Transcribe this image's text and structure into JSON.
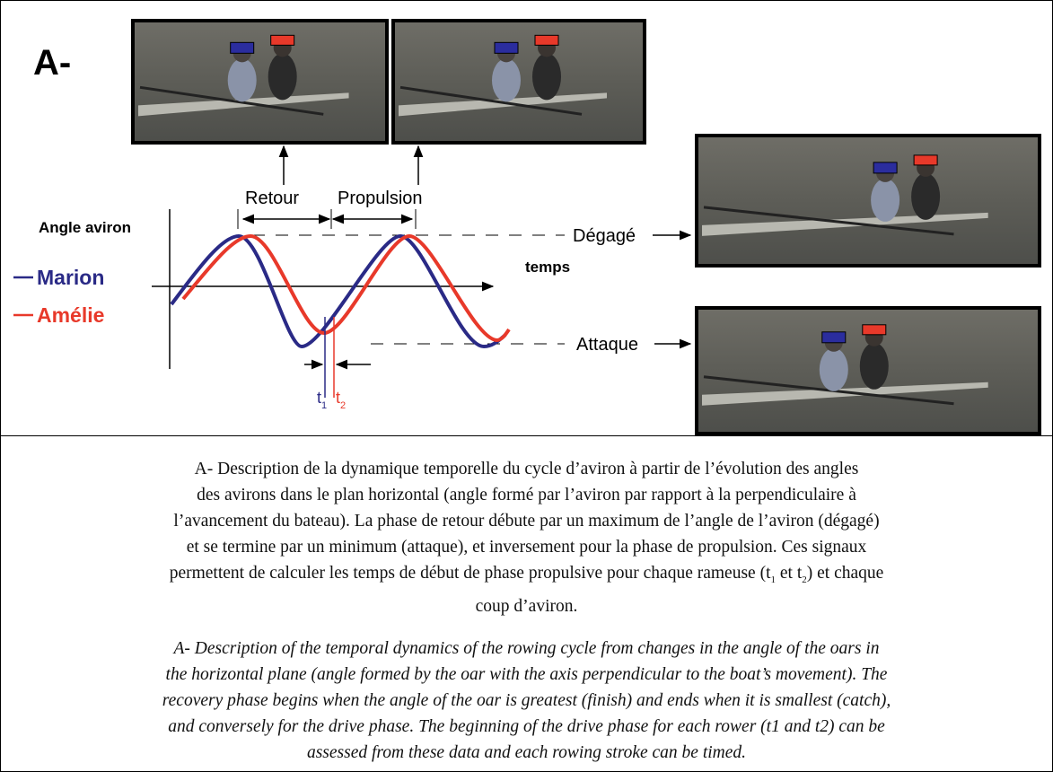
{
  "figure": {
    "panel_label": "A-",
    "phase_labels": [
      "Retour",
      "Propulsion"
    ],
    "y_axis_label": "Angle aviron",
    "x_axis_label": "temps",
    "legend": [
      "Marion",
      "Amélie"
    ],
    "levels": [
      "Dégagé",
      "Attaque"
    ],
    "time_markers": [
      [
        "t",
        "1"
      ],
      [
        "t",
        "2"
      ]
    ]
  },
  "caption": {
    "french_lines": [
      [
        "A- Description de la dynamique temporelle du cycle d’aviron à partir de l’évolution des angles"
      ],
      [
        "des avirons dans le plan horizontal (angle formé par l’aviron par rapport à la perpendiculaire à"
      ],
      [
        "l’avancement du bateau). La phase de retour débute par un maximum de l’angle de l’aviron (dégagé)"
      ],
      [
        "et se termine par un minimum (attaque), et inversement pour la phase de propulsion. Ces signaux"
      ],
      [
        "permettent de calculer les temps de début de phase propulsive pour chaque rameuse (t",
        "1",
        " et t",
        "2",
        ") et chaque"
      ],
      [
        "coup d’aviron."
      ]
    ],
    "english_lines": [
      "A- Description of the temporal dynamics of the rowing cycle from changes in the angle of the oars in",
      "the horizontal plane (angle formed by the oar with the axis perpendicular to the boat’s movement). The",
      "recovery phase begins when the angle of the oar is greatest (finish) and ends when it is smallest (catch),",
      "and conversely for the drive phase. The beginning of the drive phase for each rower (t1 and t2) can be",
      "assessed from these data and each rowing stroke can be timed."
    ]
  }
}
